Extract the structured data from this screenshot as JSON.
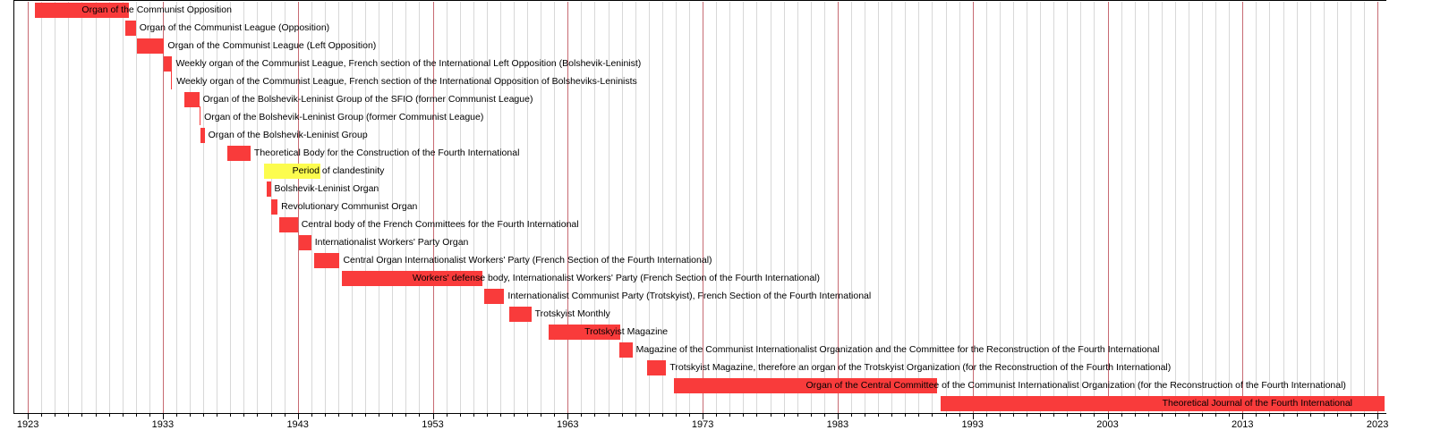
{
  "colors": {
    "bar_red": "#f93b3b",
    "bar_yellow": "#fcfc4e",
    "grid_minor": "#d8d8d8",
    "grid_major": "#c76b73",
    "axis": "#000000",
    "background": "#ffffff",
    "text": "#000000"
  },
  "chart_data": {
    "type": "timeline",
    "title": "",
    "x_axis": {
      "ticks": [
        1923,
        1933,
        1943,
        1953,
        1963,
        1973,
        1983,
        1993,
        2003,
        2013,
        2023
      ],
      "minor_interval_years": 1,
      "start": 1923,
      "end": 2024.6
    },
    "items": [
      {
        "label": "Organ of the Communist Opposition",
        "start": 1923.5,
        "end": 1930.5,
        "color": "red",
        "thin": false
      },
      {
        "label": "Organ of the Communist League (Opposition)",
        "start": 1930.2,
        "end": 1931.0,
        "color": "red",
        "thin": false
      },
      {
        "label": "Organ of the Communist League (Left Opposition)",
        "start": 1931.1,
        "end": 1933.1,
        "color": "red",
        "thin": false
      },
      {
        "label": "Weekly organ of the Communist League, French section of the International Left Opposition (Bolshevik-Leninist)",
        "start": 1933.1,
        "end": 1933.7,
        "color": "red",
        "thin": false
      },
      {
        "label": "Weekly organ of the Communist League, French section of the International Opposition of Bolsheviks-Leninists",
        "start": 1933.6,
        "end": 1933.75,
        "color": "red",
        "thin": true
      },
      {
        "label": "Organ of the Bolshevik-Leninist Group of the SFIO (former Communist League)",
        "start": 1934.6,
        "end": 1935.7,
        "color": "red",
        "thin": false
      },
      {
        "label": "Organ of the Bolshevik-Leninist Group (former Communist League)",
        "start": 1935.7,
        "end": 1935.8,
        "color": "red",
        "thin": true
      },
      {
        "label": "Organ of the Bolshevik-Leninist Group",
        "start": 1935.8,
        "end": 1936.1,
        "color": "red",
        "thin": false
      },
      {
        "label": "Theoretical Body for the Construction of the Fourth International",
        "start": 1937.8,
        "end": 1939.5,
        "color": "red",
        "thin": false
      },
      {
        "label": "Period of clandestinity",
        "start": 1940.5,
        "end": 1944.7,
        "color": "yellow",
        "thin": false
      },
      {
        "label": "Bolshevik-Leninist Organ",
        "start": 1940.7,
        "end": 1941.0,
        "color": "red",
        "thin": false
      },
      {
        "label": "Revolutionary Communist Organ",
        "start": 1941.0,
        "end": 1941.5,
        "color": "red",
        "thin": false
      },
      {
        "label": "Central body of the French Committees for the Fourth International",
        "start": 1941.6,
        "end": 1943.0,
        "color": "red",
        "thin": false
      },
      {
        "label": "Internationalist Workers' Party Organ",
        "start": 1943.1,
        "end": 1944.0,
        "color": "red",
        "thin": false
      },
      {
        "label": "Central Organ Internationalist Workers' Party (French Section of the Fourth International)",
        "start": 1944.2,
        "end": 1946.1,
        "color": "red",
        "thin": false
      },
      {
        "label": "Workers' defense body, Internationalist Workers' Party (French Section of the Fourth International)",
        "start": 1946.3,
        "end": 1956.7,
        "color": "red",
        "thin": false
      },
      {
        "label": "Internationalist Communist Party (Trotskyist), French Section of the Fourth International",
        "start": 1956.8,
        "end": 1958.3,
        "color": "red",
        "thin": false
      },
      {
        "label": "Trotskyist Monthly",
        "start": 1958.7,
        "end": 1960.3,
        "color": "red",
        "thin": false
      },
      {
        "label": "Trotskyist Magazine",
        "start": 1961.6,
        "end": 1966.9,
        "color": "red",
        "thin": false
      },
      {
        "label": "Magazine of the Communist Internationalist Organization and the Committee for the Reconstruction of the Fourth International",
        "start": 1966.8,
        "end": 1967.8,
        "color": "red",
        "thin": false
      },
      {
        "label": "Trotskyist Magazine, therefore an organ of the Trotskyist Organization (for the Reconstruction of the Fourth International)",
        "start": 1968.9,
        "end": 1970.3,
        "color": "red",
        "thin": false
      },
      {
        "label": "Organ of the Central Committee of the Communist Internationalist Organization (for the Reconstruction of the Fourth International)",
        "start": 1970.9,
        "end": 1990.4,
        "color": "red",
        "thin": false
      },
      {
        "label": "Theoretical Journal of the Fourth International",
        "start": 1990.6,
        "end": 2023.5,
        "color": "red",
        "thin": false
      }
    ]
  }
}
